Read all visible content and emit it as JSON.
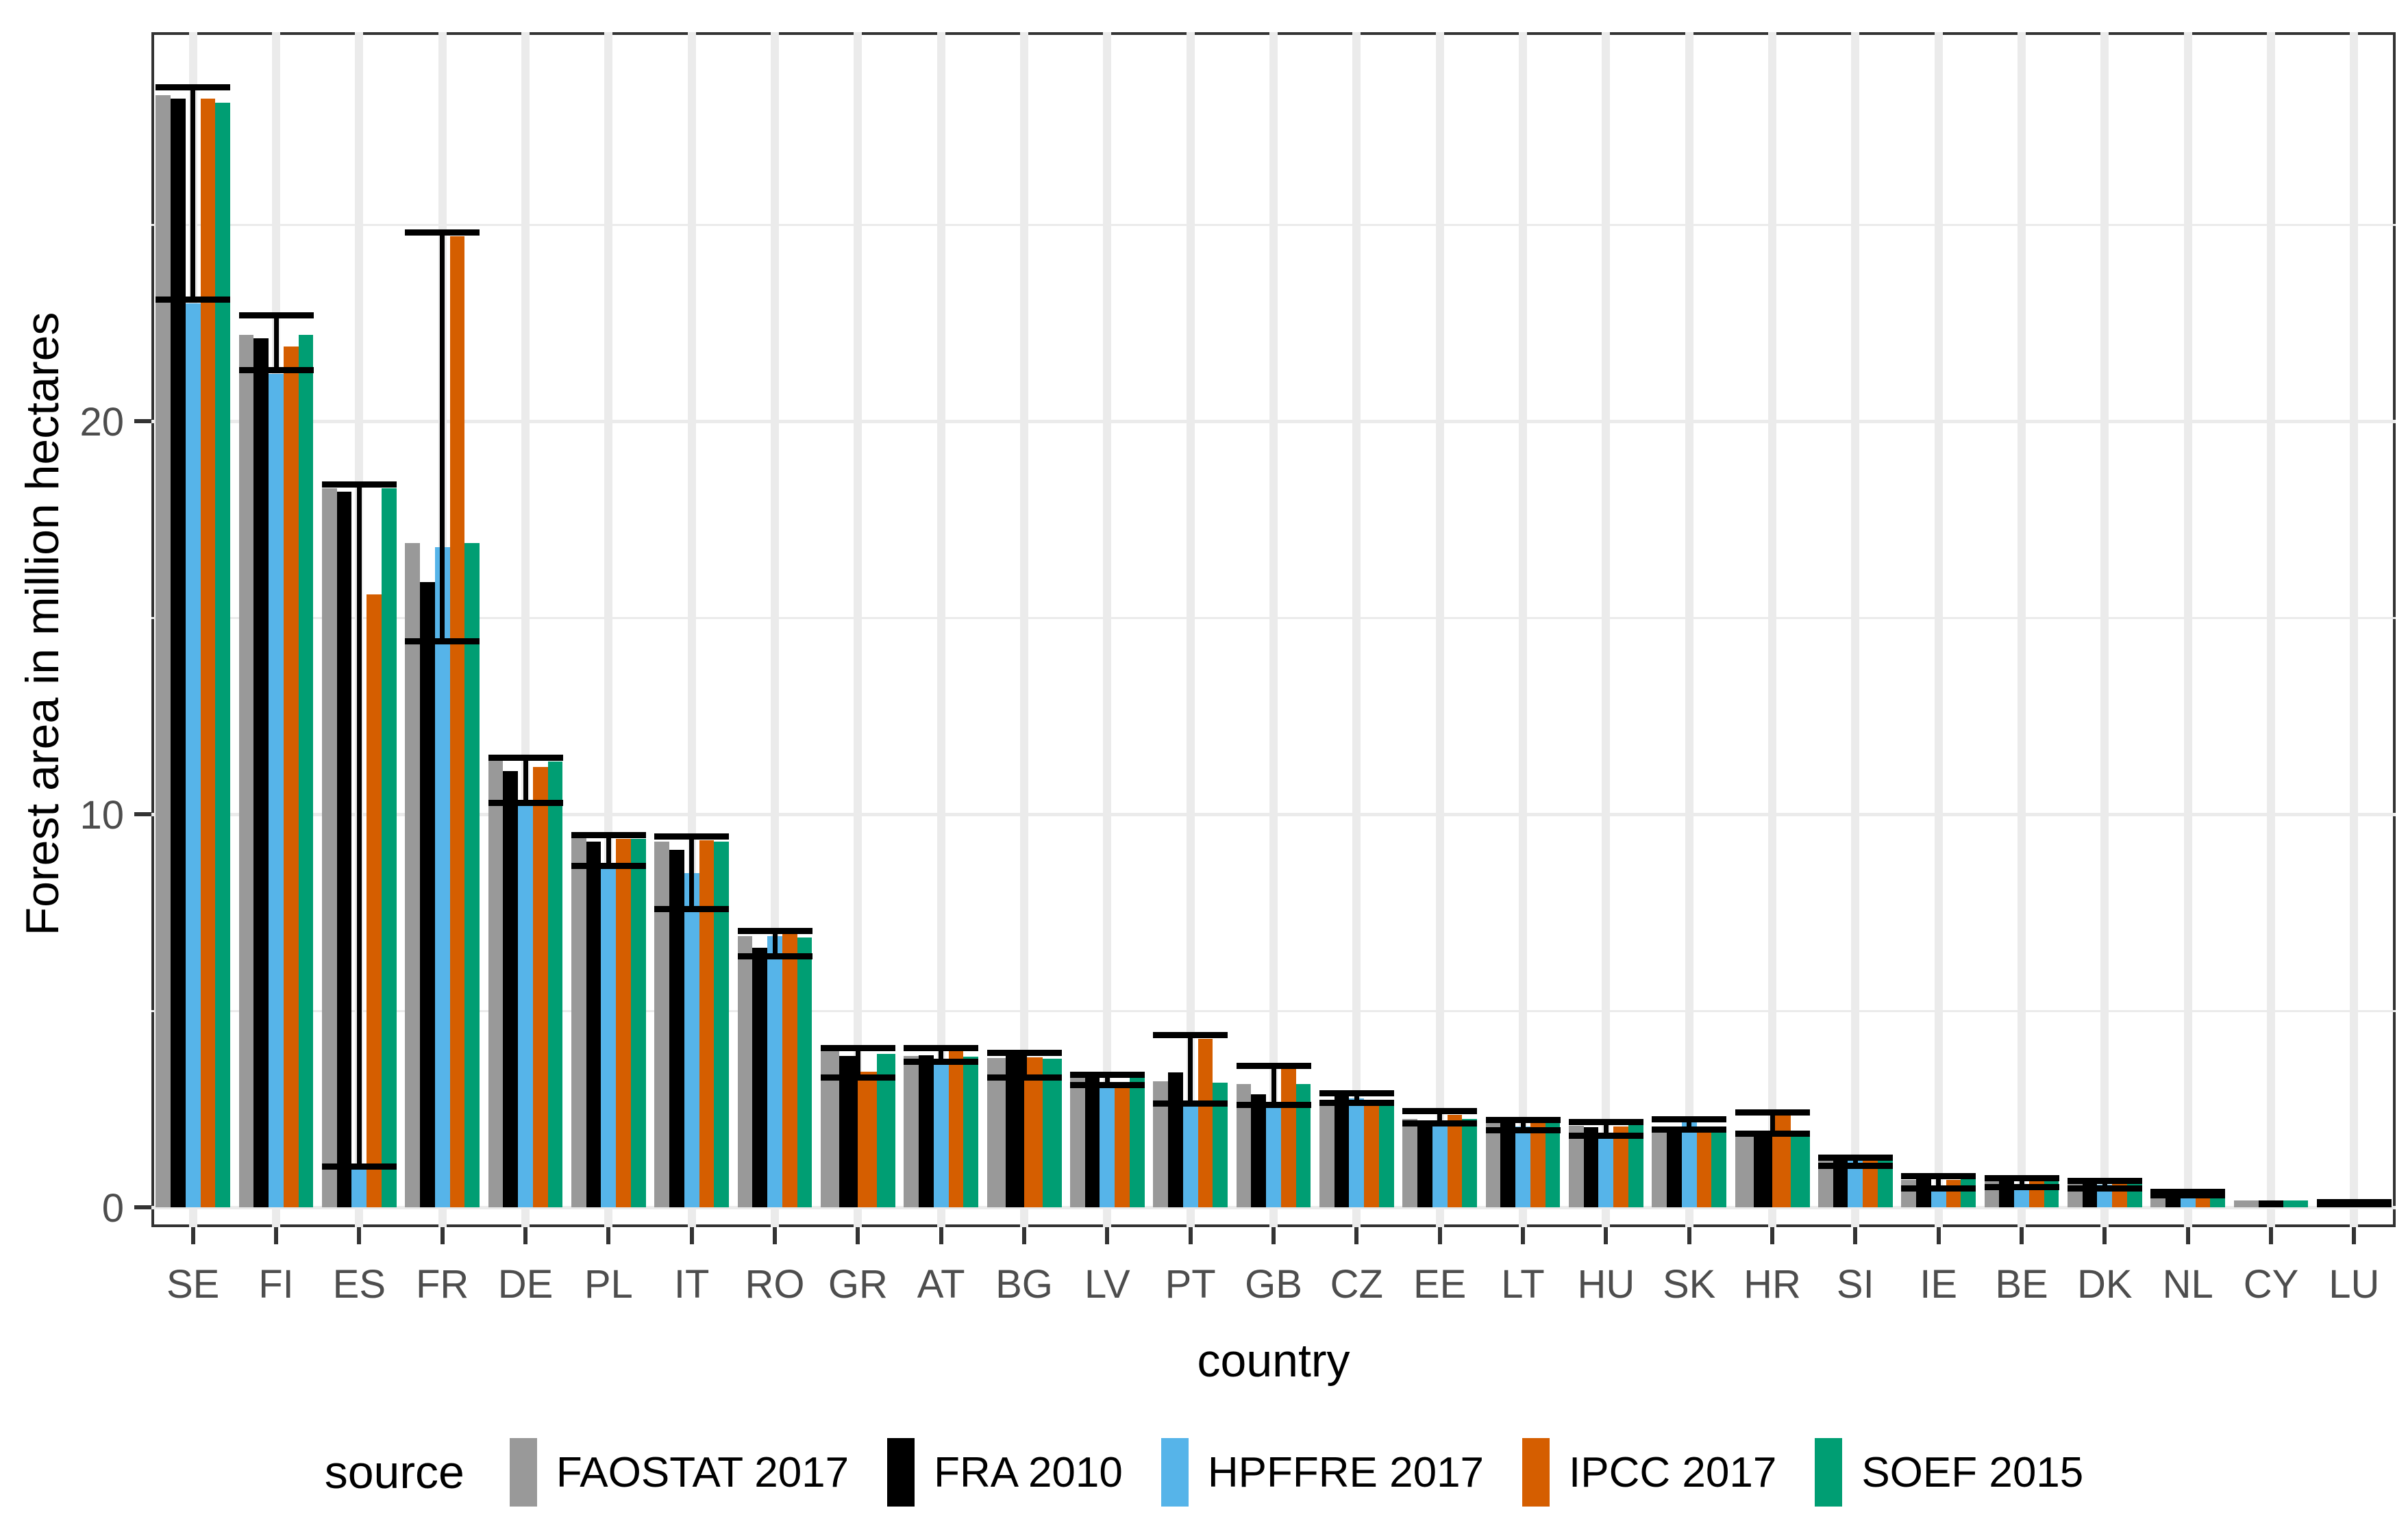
{
  "chart_data": {
    "type": "bar",
    "title": "",
    "xlabel": "country",
    "ylabel": "Forest area in million hectares",
    "ylim": [
      -0.5,
      29.9
    ],
    "grid": true,
    "legend_position": "bottom",
    "legend_title": "source",
    "y_major_ticks": [
      0,
      10,
      20
    ],
    "y_minor_gridlines": [
      5,
      15,
      25
    ],
    "categories": [
      "SE",
      "FI",
      "ES",
      "FR",
      "DE",
      "PL",
      "IT",
      "RO",
      "GR",
      "AT",
      "BG",
      "LV",
      "PT",
      "GB",
      "CZ",
      "EE",
      "LT",
      "HU",
      "SK",
      "HR",
      "SI",
      "IE",
      "BE",
      "DK",
      "NL",
      "CY",
      "LU"
    ],
    "series": [
      {
        "name": "FAOSTAT 2017",
        "color": "#999999",
        "values": [
          28.3,
          22.2,
          18.3,
          16.9,
          11.4,
          9.4,
          9.3,
          6.9,
          3.97,
          3.85,
          3.8,
          3.37,
          3.21,
          3.13,
          2.61,
          2.24,
          2.18,
          2.08,
          1.92,
          1.82,
          1.22,
          0.7,
          0.68,
          0.61,
          0.37,
          0.17,
          0.09
        ]
      },
      {
        "name": "FRA 2010",
        "color": "#000000",
        "values": [
          28.2,
          22.1,
          18.2,
          15.9,
          11.1,
          9.3,
          9.1,
          6.6,
          3.85,
          3.86,
          3.93,
          3.38,
          3.43,
          2.88,
          2.85,
          2.19,
          2.24,
          2.03,
          1.92,
          1.85,
          1.24,
          0.76,
          0.69,
          0.64,
          0.37,
          0.17,
          0.09
        ]
      },
      {
        "name": "HPFFRE 2017",
        "color": "#56B4E9",
        "values": [
          23.0,
          21.2,
          0.97,
          16.8,
          10.3,
          8.65,
          8.5,
          6.9,
          null,
          3.64,
          null,
          3.1,
          2.61,
          2.54,
          2.77,
          2.2,
          2.05,
          1.77,
          2.17,
          null,
          1.18,
          0.49,
          0.55,
          0.57,
          0.32,
          null,
          0.09
        ]
      },
      {
        "name": "IPCC 2017",
        "color": "#D55E00",
        "values": [
          28.2,
          21.9,
          15.6,
          24.7,
          11.2,
          9.37,
          9.34,
          6.95,
          3.45,
          3.97,
          3.82,
          3.17,
          4.29,
          3.52,
          2.6,
          2.36,
          2.15,
          2.06,
          2.04,
          2.33,
          1.21,
          0.7,
          0.67,
          0.62,
          0.36,
          null,
          0.09
        ]
      },
      {
        "name": "SOEF 2015",
        "color": "#009E73",
        "values": [
          28.1,
          22.2,
          18.3,
          16.9,
          11.35,
          9.37,
          9.3,
          6.86,
          3.9,
          3.84,
          3.78,
          3.35,
          3.17,
          3.14,
          2.6,
          2.24,
          2.18,
          2.09,
          1.92,
          1.92,
          1.21,
          0.72,
          0.68,
          0.6,
          0.37,
          0.17,
          0.09
        ]
      }
    ],
    "error_bars": {
      "attached_to": "HPFFRE 2017",
      "low": [
        23.1,
        21.3,
        1.05,
        14.4,
        10.3,
        8.7,
        7.6,
        6.4,
        3.31,
        3.71,
        3.31,
        3.11,
        2.65,
        2.62,
        2.66,
        2.14,
        1.97,
        1.83,
        1.98,
        1.88,
        1.07,
        0.49,
        0.52,
        0.49,
        0.31,
        null,
        0.08
      ],
      "high": [
        28.5,
        22.7,
        18.4,
        24.8,
        11.45,
        9.48,
        9.45,
        7.04,
        4.06,
        4.06,
        3.94,
        3.38,
        4.39,
        3.6,
        2.91,
        2.46,
        2.23,
        2.17,
        2.24,
        2.42,
        1.28,
        0.8,
        0.75,
        0.68,
        0.4,
        null,
        0.14
      ]
    }
  }
}
